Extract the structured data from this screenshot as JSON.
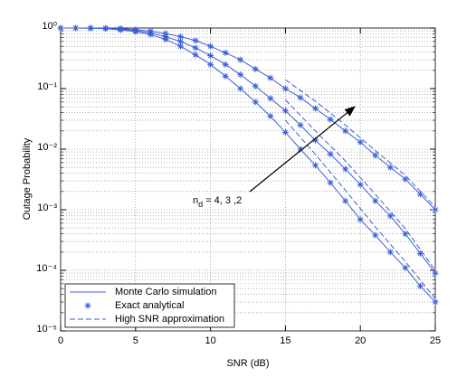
{
  "chart_data": {
    "type": "line",
    "xlabel": "SNR (dB)",
    "ylabel": "Outage Probability",
    "xlim": [
      0,
      25
    ],
    "xticks": [
      0,
      5,
      10,
      15,
      20,
      25
    ],
    "ylim": [
      1e-05,
      1
    ],
    "yscale": "log",
    "yticks": [
      {
        "value": 1e-05,
        "label": "10⁻⁵"
      },
      {
        "value": 0.0001,
        "label": "10⁻⁴"
      },
      {
        "value": 0.001,
        "label": "10⁻³"
      },
      {
        "value": 0.01,
        "label": "10⁻²"
      },
      {
        "value": 0.1,
        "label": "10⁻¹"
      },
      {
        "value": 1,
        "label": "10⁰"
      }
    ],
    "grid": true,
    "minor_grid": true,
    "legend": "lower left",
    "annotation": [
      "n",
      "d",
      " = 4, 3 ,2"
    ],
    "series": [
      {
        "name": "Monte Carlo simulation",
        "color": "#3c5fd8",
        "style": "solid",
        "marker": "none",
        "x": [
          0,
          1,
          2,
          3,
          4,
          5,
          6,
          7,
          8,
          9,
          10,
          11,
          12,
          13,
          14,
          15,
          16,
          17,
          18,
          19,
          20,
          21,
          22,
          23,
          24,
          25
        ],
        "curves": [
          [
            1,
            1,
            1,
            0.99,
            0.98,
            0.94,
            0.89,
            0.81,
            0.72,
            0.62,
            0.5,
            0.39,
            0.3,
            0.21,
            0.15,
            0.1,
            0.071,
            0.047,
            0.031,
            0.02,
            0.013,
            0.0079,
            0.005,
            0.0032,
            0.0018,
            0.001
          ],
          [
            1,
            1,
            1,
            0.99,
            0.95,
            0.91,
            0.83,
            0.72,
            0.6,
            0.47,
            0.35,
            0.25,
            0.17,
            0.11,
            0.069,
            0.043,
            0.025,
            0.014,
            0.0083,
            0.0047,
            0.0026,
            0.0014,
            0.00079,
            0.0004,
            0.00019,
            9e-05
          ],
          [
            1,
            1,
            0.99,
            0.98,
            0.93,
            0.87,
            0.78,
            0.65,
            0.5,
            0.36,
            0.25,
            0.16,
            0.1,
            0.06,
            0.035,
            0.019,
            0.01,
            0.0054,
            0.0028,
            0.0014,
            0.00069,
            0.00038,
            0.0002,
            0.00011,
            5.5e-05,
            3e-05
          ]
        ]
      },
      {
        "name": "Exact analytical",
        "color": "#3c5fd8",
        "style": "none",
        "marker": "star",
        "x": [
          0,
          1,
          2,
          3,
          4,
          5,
          6,
          7,
          8,
          9,
          10,
          11,
          12,
          13,
          14,
          15,
          16,
          17,
          18,
          19,
          20,
          21,
          22,
          23,
          24,
          25
        ],
        "curves": [
          [
            1,
            1,
            1,
            0.99,
            0.98,
            0.94,
            0.89,
            0.81,
            0.72,
            0.62,
            0.5,
            0.39,
            0.3,
            0.21,
            0.15,
            0.1,
            0.071,
            0.047,
            0.031,
            0.02,
            0.013,
            0.0079,
            0.005,
            0.0032,
            0.0018,
            0.001
          ],
          [
            1,
            1,
            1,
            0.99,
            0.95,
            0.91,
            0.83,
            0.72,
            0.6,
            0.47,
            0.35,
            0.25,
            0.17,
            0.11,
            0.069,
            0.043,
            0.025,
            0.014,
            0.0083,
            0.0047,
            0.0026,
            0.0014,
            0.00079,
            0.0004,
            0.00019,
            9e-05
          ],
          [
            1,
            1,
            0.99,
            0.98,
            0.93,
            0.87,
            0.78,
            0.65,
            0.5,
            0.36,
            0.25,
            0.16,
            0.1,
            0.06,
            0.035,
            0.019,
            0.01,
            0.0054,
            0.0028,
            0.0014,
            0.00069,
            0.00038,
            0.0002,
            0.00011,
            5.5e-05,
            3e-05
          ]
        ]
      },
      {
        "name": "High SNR approximation",
        "color": "#3c5fd8",
        "style": "dashed",
        "marker": "none",
        "x": [
          15,
          17,
          19,
          21,
          23,
          25
        ],
        "curves": [
          [
            0.14,
            0.062,
            0.025,
            0.0095,
            0.0037,
            0.0011
          ],
          [
            0.065,
            0.02,
            0.0064,
            0.0018,
            0.00049,
            0.0001
          ],
          [
            0.03,
            0.0082,
            0.0021,
            0.00052,
            0.00014,
            3.4e-05
          ]
        ]
      }
    ]
  }
}
